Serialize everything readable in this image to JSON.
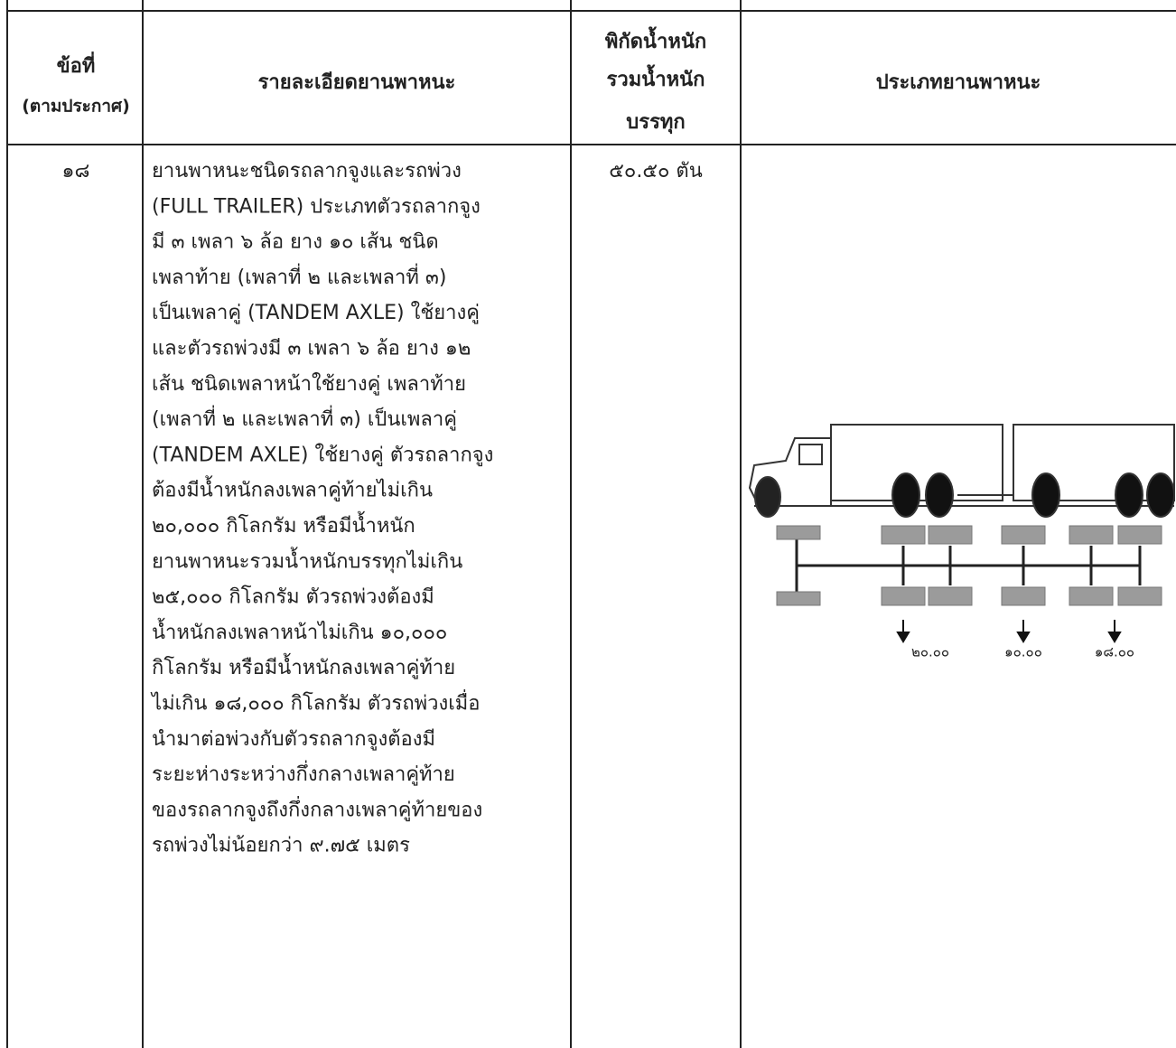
{
  "header": {
    "item_no": [
      "ข้อที่",
      "(ตามประกาศ)"
    ],
    "details": "รายละเอียดยานพาหนะ",
    "weight_limit": [
      "พิกัดน้ำหนัก",
      "รวมน้ำหนัก",
      "บรรทุก"
    ],
    "vehicle_type": "ประเภทยานพาหนะ"
  },
  "row": {
    "item_no": "๑๘",
    "details": [
      "ยานพาหนะชนิดรถลากจูงและรถพ่วง",
      "(FULL TRAILER) ประเภทตัวรถลากจูง",
      "มี ๓ เพลา ๖ ล้อ ยาง ๑๐ เส้น ชนิด",
      "เพลาท้าย (เพลาที่ ๒ และเพลาที่ ๓)",
      "เป็นเพลาคู่ (TANDEM AXLE) ใช้ยางคู่",
      "และตัวรถพ่วงมี ๓ เพลา ๖ ล้อ ยาง ๑๒",
      "เส้น ชนิดเพลาหน้าใช้ยางคู่ เพลาท้าย",
      "(เพลาที่ ๒ และเพลาที่ ๓) เป็นเพลาคู่",
      "(TANDEM AXLE) ใช้ยางคู่ ตัวรถลากจูง",
      "ต้องมีน้ำหนักลงเพลาคู่ท้ายไม่เกิน",
      "๒๐,๐๐๐ กิโลกรัม หรือมีน้ำหนัก",
      "ยานพาหนะรวมน้ำหนักบรรทุกไม่เกิน",
      "๒๕,๐๐๐ กิโลกรัม ตัวรถพ่วงต้องมี",
      "น้ำหนักลงเพลาหน้าไม่เกิน ๑๐,๐๐๐",
      "กิโลกรัม หรือมีน้ำหนักลงเพลาคู่ท้าย",
      "ไม่เกิน ๑๘,๐๐๐ กิโลกรัม ตัวรถพ่วงเมื่อ",
      "นำมาต่อพ่วงกับตัวรถลากจูงต้องมี",
      "ระยะห่างระหว่างกึ่งกลางเพลาคู่ท้าย",
      "ของรถลากจูงถึงกึ่งกลางเพลาคู่ท้ายของ",
      "รถพ่วงไม่น้อยกว่า ๙.๗๕ เมตร"
    ],
    "weight_limit": "๕๐.๕๐ ตัน",
    "axle_loads": [
      "๒๐.๐๐",
      "๑๐.๐๐",
      "๑๘.๐๐"
    ]
  }
}
